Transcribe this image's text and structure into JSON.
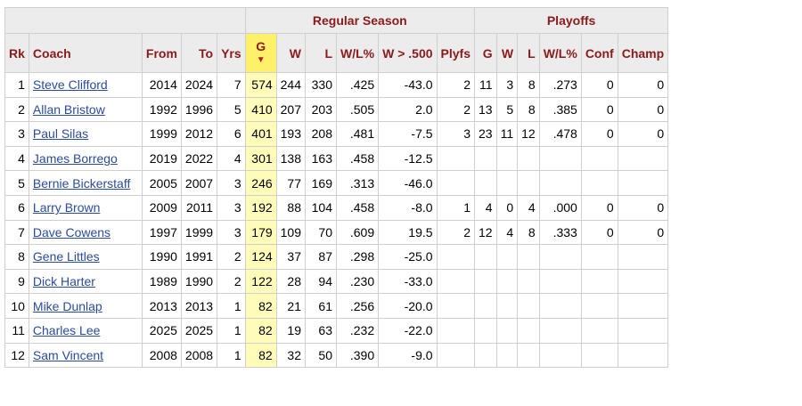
{
  "table": {
    "groups": {
      "regular": "Regular Season",
      "playoffs": "Playoffs"
    },
    "columns": {
      "rk": "Rk",
      "coach": "Coach",
      "from": "From",
      "to": "To",
      "yrs": "Yrs",
      "g": "G",
      "sort_arrow": "▼",
      "w": "W",
      "l": "L",
      "wlpct": "W/L%",
      "w500": "W > .500",
      "plyfs": "Plyfs",
      "pg": "G",
      "pw": "W",
      "pl": "L",
      "pwlpct": "W/L%",
      "conf": "Conf",
      "champ": "Champ"
    },
    "rows": [
      {
        "rk": "1",
        "coach": "Steve Clifford",
        "from": "2014",
        "to": "2024",
        "yrs": "7",
        "g": "574",
        "w": "244",
        "l": "330",
        "wlpct": ".425",
        "w500": "-43.0",
        "plyfs": "2",
        "pg": "11",
        "pw": "3",
        "pl": "8",
        "pwlpct": ".273",
        "conf": "0",
        "champ": "0"
      },
      {
        "rk": "2",
        "coach": "Allan Bristow",
        "from": "1992",
        "to": "1996",
        "yrs": "5",
        "g": "410",
        "w": "207",
        "l": "203",
        "wlpct": ".505",
        "w500": "2.0",
        "plyfs": "2",
        "pg": "13",
        "pw": "5",
        "pl": "8",
        "pwlpct": ".385",
        "conf": "0",
        "champ": "0"
      },
      {
        "rk": "3",
        "coach": "Paul Silas",
        "from": "1999",
        "to": "2012",
        "yrs": "6",
        "g": "401",
        "w": "193",
        "l": "208",
        "wlpct": ".481",
        "w500": "-7.5",
        "plyfs": "3",
        "pg": "23",
        "pw": "11",
        "pl": "12",
        "pwlpct": ".478",
        "conf": "0",
        "champ": "0"
      },
      {
        "rk": "4",
        "coach": "James Borrego",
        "from": "2019",
        "to": "2022",
        "yrs": "4",
        "g": "301",
        "w": "138",
        "l": "163",
        "wlpct": ".458",
        "w500": "-12.5",
        "plyfs": "",
        "pg": "",
        "pw": "",
        "pl": "",
        "pwlpct": "",
        "conf": "",
        "champ": ""
      },
      {
        "rk": "5",
        "coach": "Bernie Bickerstaff",
        "from": "2005",
        "to": "2007",
        "yrs": "3",
        "g": "246",
        "w": "77",
        "l": "169",
        "wlpct": ".313",
        "w500": "-46.0",
        "plyfs": "",
        "pg": "",
        "pw": "",
        "pl": "",
        "pwlpct": "",
        "conf": "",
        "champ": ""
      },
      {
        "rk": "6",
        "coach": "Larry Brown",
        "from": "2009",
        "to": "2011",
        "yrs": "3",
        "g": "192",
        "w": "88",
        "l": "104",
        "wlpct": ".458",
        "w500": "-8.0",
        "plyfs": "1",
        "pg": "4",
        "pw": "0",
        "pl": "4",
        "pwlpct": ".000",
        "conf": "0",
        "champ": "0"
      },
      {
        "rk": "7",
        "coach": "Dave Cowens",
        "from": "1997",
        "to": "1999",
        "yrs": "3",
        "g": "179",
        "w": "109",
        "l": "70",
        "wlpct": ".609",
        "w500": "19.5",
        "plyfs": "2",
        "pg": "12",
        "pw": "4",
        "pl": "8",
        "pwlpct": ".333",
        "conf": "0",
        "champ": "0"
      },
      {
        "rk": "8",
        "coach": "Gene Littles",
        "from": "1990",
        "to": "1991",
        "yrs": "2",
        "g": "124",
        "w": "37",
        "l": "87",
        "wlpct": ".298",
        "w500": "-25.0",
        "plyfs": "",
        "pg": "",
        "pw": "",
        "pl": "",
        "pwlpct": "",
        "conf": "",
        "champ": ""
      },
      {
        "rk": "9",
        "coach": "Dick Harter",
        "from": "1989",
        "to": "1990",
        "yrs": "2",
        "g": "122",
        "w": "28",
        "l": "94",
        "wlpct": ".230",
        "w500": "-33.0",
        "plyfs": "",
        "pg": "",
        "pw": "",
        "pl": "",
        "pwlpct": "",
        "conf": "",
        "champ": ""
      },
      {
        "rk": "10",
        "coach": "Mike Dunlap",
        "from": "2013",
        "to": "2013",
        "yrs": "1",
        "g": "82",
        "w": "21",
        "l": "61",
        "wlpct": ".256",
        "w500": "-20.0",
        "plyfs": "",
        "pg": "",
        "pw": "",
        "pl": "",
        "pwlpct": "",
        "conf": "",
        "champ": ""
      },
      {
        "rk": "11",
        "coach": "Charles Lee",
        "from": "2025",
        "to": "2025",
        "yrs": "1",
        "g": "82",
        "w": "19",
        "l": "63",
        "wlpct": ".232",
        "w500": "-22.0",
        "plyfs": "",
        "pg": "",
        "pw": "",
        "pl": "",
        "pwlpct": "",
        "conf": "",
        "champ": ""
      },
      {
        "rk": "12",
        "coach": "Sam Vincent",
        "from": "2008",
        "to": "2008",
        "yrs": "1",
        "g": "82",
        "w": "32",
        "l": "50",
        "wlpct": ".390",
        "w500": "-9.0",
        "plyfs": "",
        "pg": "",
        "pw": "",
        "pl": "",
        "pwlpct": "",
        "conf": "",
        "champ": ""
      }
    ]
  },
  "colors": {
    "header_text": "#8b1a1a",
    "header_bg": "#ececec",
    "sort_header_bg": "#fff06a",
    "sort_col_bg": "#fffbb8",
    "link": "#2b4b9b"
  }
}
